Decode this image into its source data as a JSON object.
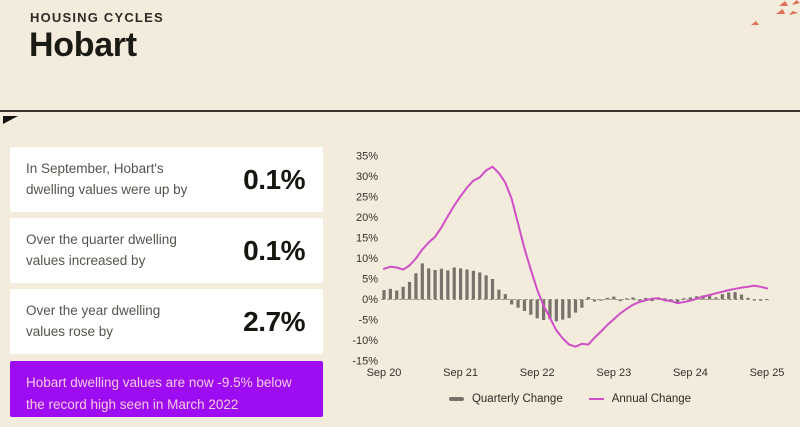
{
  "header": {
    "eyebrow": "HOUSING CYCLES",
    "title": "Hobart"
  },
  "stats": [
    {
      "label": "In September, Hobart's dwelling values were up by",
      "value": "0.1%"
    },
    {
      "label": "Over the quarter dwelling values increased by",
      "value": "0.1%"
    },
    {
      "label": "Over the year dwelling values rose by",
      "value": "2.7%"
    }
  ],
  "banner": {
    "text": "Hobart dwelling values are now -9.5% below the record high seen in March 2022"
  },
  "colors": {
    "background": "#f3ebdc",
    "card": "#ffffff",
    "banner_purple": "#9d0cf2",
    "banner_text_pink": "#f5cadf",
    "bar_gray": "#77736a",
    "line_magenta": "#d04fc6",
    "logo_salmon": "#e1705a"
  },
  "chart_data": {
    "type": "bar+line",
    "title": "",
    "xlabel": "",
    "ylabel": "",
    "ylim": [
      -15,
      35
    ],
    "y_ticks": [
      35,
      30,
      25,
      20,
      15,
      10,
      5,
      0,
      -5,
      -10,
      -15
    ],
    "y_tick_suffix": "%",
    "x_tick_labels": [
      "Sep 20",
      "Sep 21",
      "Sep 22",
      "Sep 23",
      "Sep 24",
      "Sep 25"
    ],
    "x_tick_indices": [
      0,
      12,
      24,
      36,
      48,
      60
    ],
    "grid": "dashed zero line only",
    "legend_position": "bottom",
    "x": [
      "Sep 20",
      "Oct 20",
      "Nov 20",
      "Dec 20",
      "Jan 21",
      "Feb 21",
      "Mar 21",
      "Apr 21",
      "May 21",
      "Jun 21",
      "Jul 21",
      "Aug 21",
      "Sep 21",
      "Oct 21",
      "Nov 21",
      "Dec 21",
      "Jan 22",
      "Feb 22",
      "Mar 22",
      "Apr 22",
      "May 22",
      "Jun 22",
      "Jul 22",
      "Aug 22",
      "Sep 22",
      "Oct 22",
      "Nov 22",
      "Dec 22",
      "Jan 23",
      "Feb 23",
      "Mar 23",
      "Apr 23",
      "May 23",
      "Jun 23",
      "Jul 23",
      "Aug 23",
      "Sep 23",
      "Oct 23",
      "Nov 23",
      "Dec 23",
      "Jan 24",
      "Feb 24",
      "Mar 24",
      "Apr 24",
      "May 24",
      "Jun 24",
      "Jul 24",
      "Aug 24",
      "Sep 24",
      "Oct 24",
      "Nov 24",
      "Dec 24",
      "Jan 25",
      "Feb 25",
      "Mar 25",
      "Apr 25",
      "May 25",
      "Jun 25",
      "Jul 25",
      "Aug 25",
      "Sep 25"
    ],
    "series": [
      {
        "name": "Quarterly Change",
        "type": "bar",
        "color": "#77736a",
        "values": [
          2.3,
          2.6,
          2.2,
          3.1,
          4.3,
          6.4,
          8.8,
          7.6,
          7.2,
          7.5,
          7.1,
          7.8,
          7.6,
          7.3,
          7.0,
          6.6,
          5.9,
          5.0,
          2.4,
          1.3,
          -1.2,
          -2.0,
          -2.8,
          -3.7,
          -4.6,
          -5.0,
          -4.8,
          -5.3,
          -4.9,
          -4.5,
          -3.2,
          -2.0,
          0.6,
          -0.5,
          -0.3,
          0.4,
          0.7,
          -0.4,
          0.3,
          0.5,
          -0.3,
          0.4,
          -0.4,
          0.5,
          0.3,
          -0.3,
          -0.8,
          0.3,
          0.5,
          0.8,
          1.0,
          1.2,
          0.5,
          1.3,
          1.7,
          1.8,
          1.2,
          0.4,
          -0.2,
          -0.3,
          0.1
        ]
      },
      {
        "name": "Annual Change",
        "type": "line",
        "color": "#d04fc6",
        "values": [
          7.5,
          8.0,
          7.8,
          7.3,
          8.3,
          10.0,
          12.2,
          13.9,
          15.3,
          17.6,
          20.3,
          22.9,
          25.2,
          27.3,
          29.0,
          29.8,
          31.5,
          32.4,
          30.8,
          28.5,
          24.5,
          18.5,
          12.5,
          7.3,
          2.4,
          -1.5,
          -4.5,
          -7.5,
          -9.5,
          -11.0,
          -11.5,
          -10.8,
          -11.0,
          -9.3,
          -7.8,
          -6.2,
          -4.8,
          -3.4,
          -2.3,
          -1.3,
          -0.6,
          -0.2,
          0.2,
          0.3,
          -0.2,
          -0.4,
          -0.9,
          -0.6,
          -0.3,
          0.2,
          0.7,
          1.1,
          1.5,
          1.9,
          2.3,
          2.6,
          2.9,
          3.1,
          3.4,
          3.1,
          2.7
        ]
      }
    ]
  }
}
